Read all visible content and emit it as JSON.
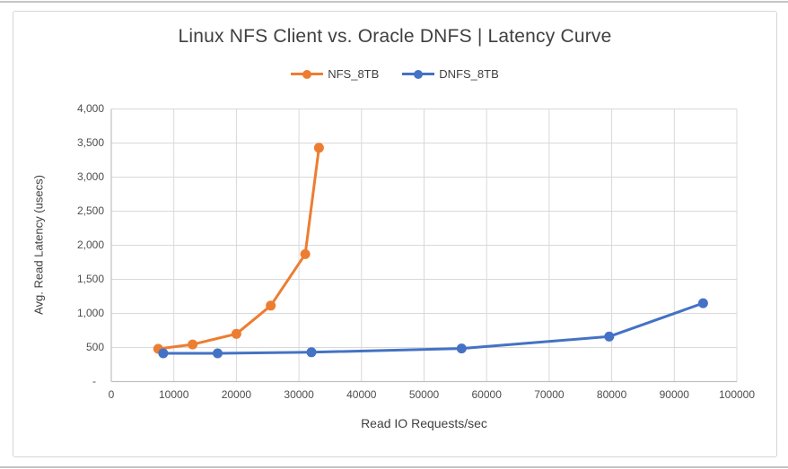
{
  "chart_data": {
    "type": "line",
    "title": "Linux NFS Client vs. Oracle DNFS | Latency Curve",
    "xlabel": "Read IO Requests/sec",
    "ylabel": "Avg. Read Latency (usecs)",
    "xlim": [
      0,
      100000
    ],
    "ylim": [
      0,
      4000
    ],
    "grid": true,
    "legend_position": "top-center",
    "x_ticks": [
      {
        "value": 0,
        "label": "0"
      },
      {
        "value": 10000,
        "label": "10000"
      },
      {
        "value": 20000,
        "label": "20000"
      },
      {
        "value": 30000,
        "label": "30000"
      },
      {
        "value": 40000,
        "label": "40000"
      },
      {
        "value": 50000,
        "label": "50000"
      },
      {
        "value": 60000,
        "label": "60000"
      },
      {
        "value": 70000,
        "label": "70000"
      },
      {
        "value": 80000,
        "label": "80000"
      },
      {
        "value": 90000,
        "label": "90000"
      },
      {
        "value": 100000,
        "label": "100000"
      }
    ],
    "y_ticks": [
      {
        "value": 0,
        "label": "-"
      },
      {
        "value": 500,
        "label": "500"
      },
      {
        "value": 1000,
        "label": "1,000"
      },
      {
        "value": 1500,
        "label": "1,500"
      },
      {
        "value": 2000,
        "label": "2,000"
      },
      {
        "value": 2500,
        "label": "2,500"
      },
      {
        "value": 3000,
        "label": "3,000"
      },
      {
        "value": 3500,
        "label": "3,500"
      },
      {
        "value": 4000,
        "label": "4,000"
      }
    ],
    "series": [
      {
        "name": "NFS_8TB",
        "color": "#ED7D31",
        "points": [
          [
            7500,
            480
          ],
          [
            13000,
            545
          ],
          [
            20000,
            700
          ],
          [
            25500,
            1115
          ],
          [
            31000,
            1870
          ],
          [
            33200,
            3430
          ]
        ]
      },
      {
        "name": "DNFS_8TB",
        "color": "#4472C4",
        "points": [
          [
            8300,
            415
          ],
          [
            17000,
            415
          ],
          [
            32000,
            430
          ],
          [
            56000,
            485
          ],
          [
            79600,
            660
          ],
          [
            94600,
            1150
          ]
        ]
      }
    ]
  },
  "colors": {
    "nfs_orange": "#ED7D31",
    "dnfs_blue": "#4472C4",
    "gridline": "#D9D9D9",
    "axis_line": "#C0C0C0",
    "title_text": "#404040",
    "tick_text": "#4D4D4D",
    "frame_border": "#D6D6D6",
    "page_rule": "#C4C4C4"
  }
}
